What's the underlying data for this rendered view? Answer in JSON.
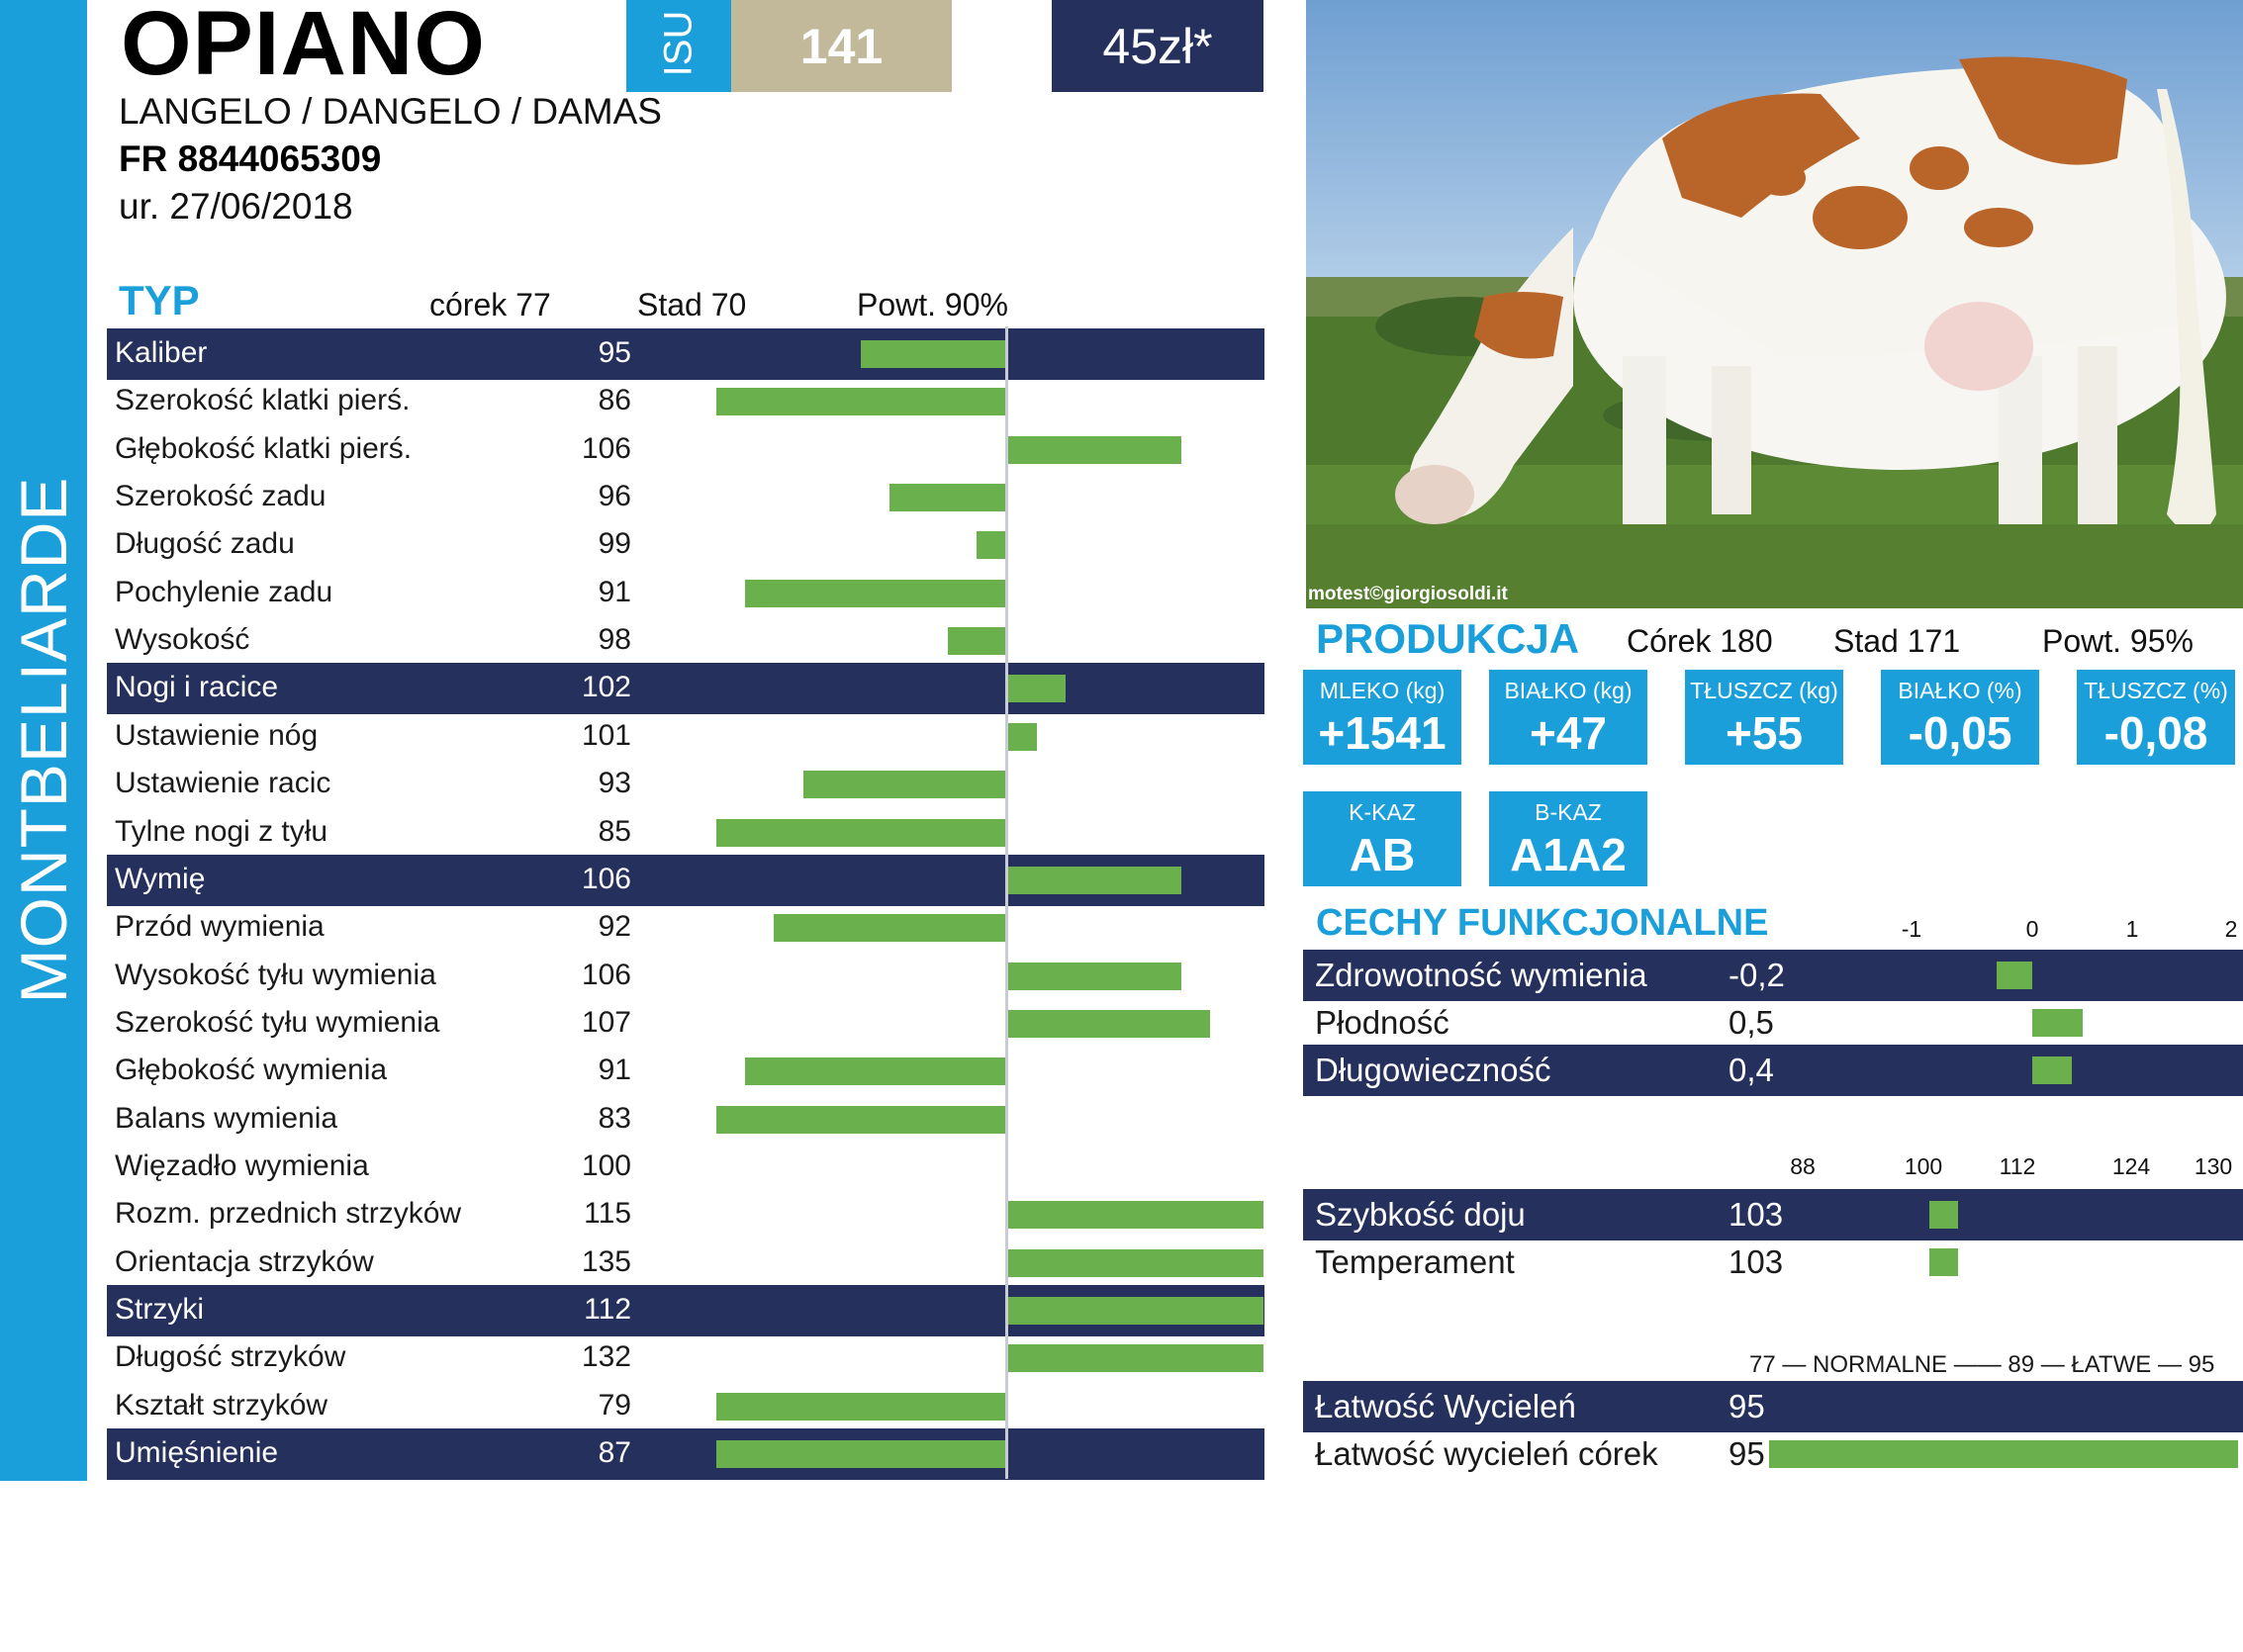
{
  "breed": "MONTBELIARDE",
  "bull": {
    "name": "OPIANO",
    "pedigree": "LANGELO / DANGELO / DAMAS",
    "id": "FR 8844065309",
    "born": "ur. 27/06/2018"
  },
  "isu": {
    "label": "ISU",
    "value": "141"
  },
  "price": "45zł*",
  "typ": {
    "title": "TYP",
    "daughters": "córek 77",
    "herds": "Stad 70",
    "reliability": "Powt. 90%",
    "axis_center": 100,
    "rows": [
      {
        "label": "Kaliber",
        "value": 95,
        "dark": true
      },
      {
        "label": "Szerokość klatki pierś.",
        "value": 86,
        "dark": false
      },
      {
        "label": "Głębokość klatki pierś.",
        "value": 106,
        "dark": false
      },
      {
        "label": "Szerokość zadu",
        "value": 96,
        "dark": false
      },
      {
        "label": "Długość zadu",
        "value": 99,
        "dark": false
      },
      {
        "label": "Pochylenie zadu",
        "value": 91,
        "dark": false
      },
      {
        "label": "Wysokość",
        "value": 98,
        "dark": false
      },
      {
        "label": "Nogi i racice",
        "value": 102,
        "dark": true
      },
      {
        "label": "Ustawienie nóg",
        "value": 101,
        "dark": false
      },
      {
        "label": "Ustawienie racic",
        "value": 93,
        "dark": false
      },
      {
        "label": "Tylne nogi z tyłu",
        "value": 85,
        "dark": false
      },
      {
        "label": "Wymię",
        "value": 106,
        "dark": true
      },
      {
        "label": "Przód wymienia",
        "value": 92,
        "dark": false
      },
      {
        "label": "Wysokość tyłu wymienia",
        "value": 106,
        "dark": false
      },
      {
        "label": "Szerokość tyłu wymienia",
        "value": 107,
        "dark": false
      },
      {
        "label": "Głębokość wymienia",
        "value": 91,
        "dark": false
      },
      {
        "label": "Balans wymienia",
        "value": 83,
        "dark": false
      },
      {
        "label": "Więzadło wymienia",
        "value": 100,
        "dark": false
      },
      {
        "label": "Rozm. przednich strzyków",
        "value": 115,
        "dark": false
      },
      {
        "label": "Orientacja strzyków",
        "value": 135,
        "dark": false
      },
      {
        "label": "Strzyki",
        "value": 112,
        "dark": true
      },
      {
        "label": "Długość strzyków",
        "value": 132,
        "dark": false
      },
      {
        "label": "Kształt strzyków",
        "value": 79,
        "dark": false
      },
      {
        "label": "Umięśnienie",
        "value": 87,
        "dark": true
      }
    ]
  },
  "photo": {
    "credit": "motest©giorgiosoldi.it"
  },
  "produkcja": {
    "title": "PRODUKCJA",
    "daughters": "Córek 180",
    "herds": "Stad 171",
    "reliability": "Powt. 95%",
    "boxes": [
      {
        "label": "MLEKO (kg)",
        "value": "+1541"
      },
      {
        "label": "BIAŁKO (kg)",
        "value": "+47"
      },
      {
        "label": "TŁUSZCZ (kg)",
        "value": "+55"
      },
      {
        "label": "BIAŁKO (%)",
        "value": "-0,05"
      },
      {
        "label": "TŁUSZCZ (%)",
        "value": "-0,08"
      }
    ],
    "casein": [
      {
        "label": "K-KAZ",
        "value": "AB"
      },
      {
        "label": "B-KAZ",
        "value": "A1A2"
      }
    ]
  },
  "cechy": {
    "title": "CECHY FUNKCJONALNE",
    "scale": [
      "-1",
      "0",
      "1",
      "2"
    ],
    "rows": [
      {
        "label": "Zdrowotność wymienia",
        "value": "-0,2",
        "num": -0.2,
        "dark": true
      },
      {
        "label": "Płodność",
        "value": "0,5",
        "num": 0.5,
        "dark": false
      },
      {
        "label": "Długowieczność",
        "value": "0,4",
        "num": 0.4,
        "dark": true
      }
    ]
  },
  "milking": {
    "scale": [
      "88",
      "100",
      "112",
      "124",
      "130"
    ],
    "rows": [
      {
        "label": "Szybkość doju",
        "value": "103",
        "num": 103,
        "dark": true
      },
      {
        "label": "Temperament",
        "value": "103",
        "num": 103,
        "dark": false
      }
    ]
  },
  "calving": {
    "scale": "77 — NORMALNE —— 89 — ŁATWE — 95",
    "rows": [
      {
        "label": "Łatwość Wycieleń",
        "value": "95",
        "num": 95,
        "dark": true
      },
      {
        "label": "Łatwość wycieleń córek",
        "value": "95",
        "num": 95,
        "dark": false
      }
    ]
  },
  "colors": {
    "blue": "#1a9fdb",
    "navy": "#26305c",
    "green": "#6ab04c",
    "khaki": "#c2b99b"
  }
}
